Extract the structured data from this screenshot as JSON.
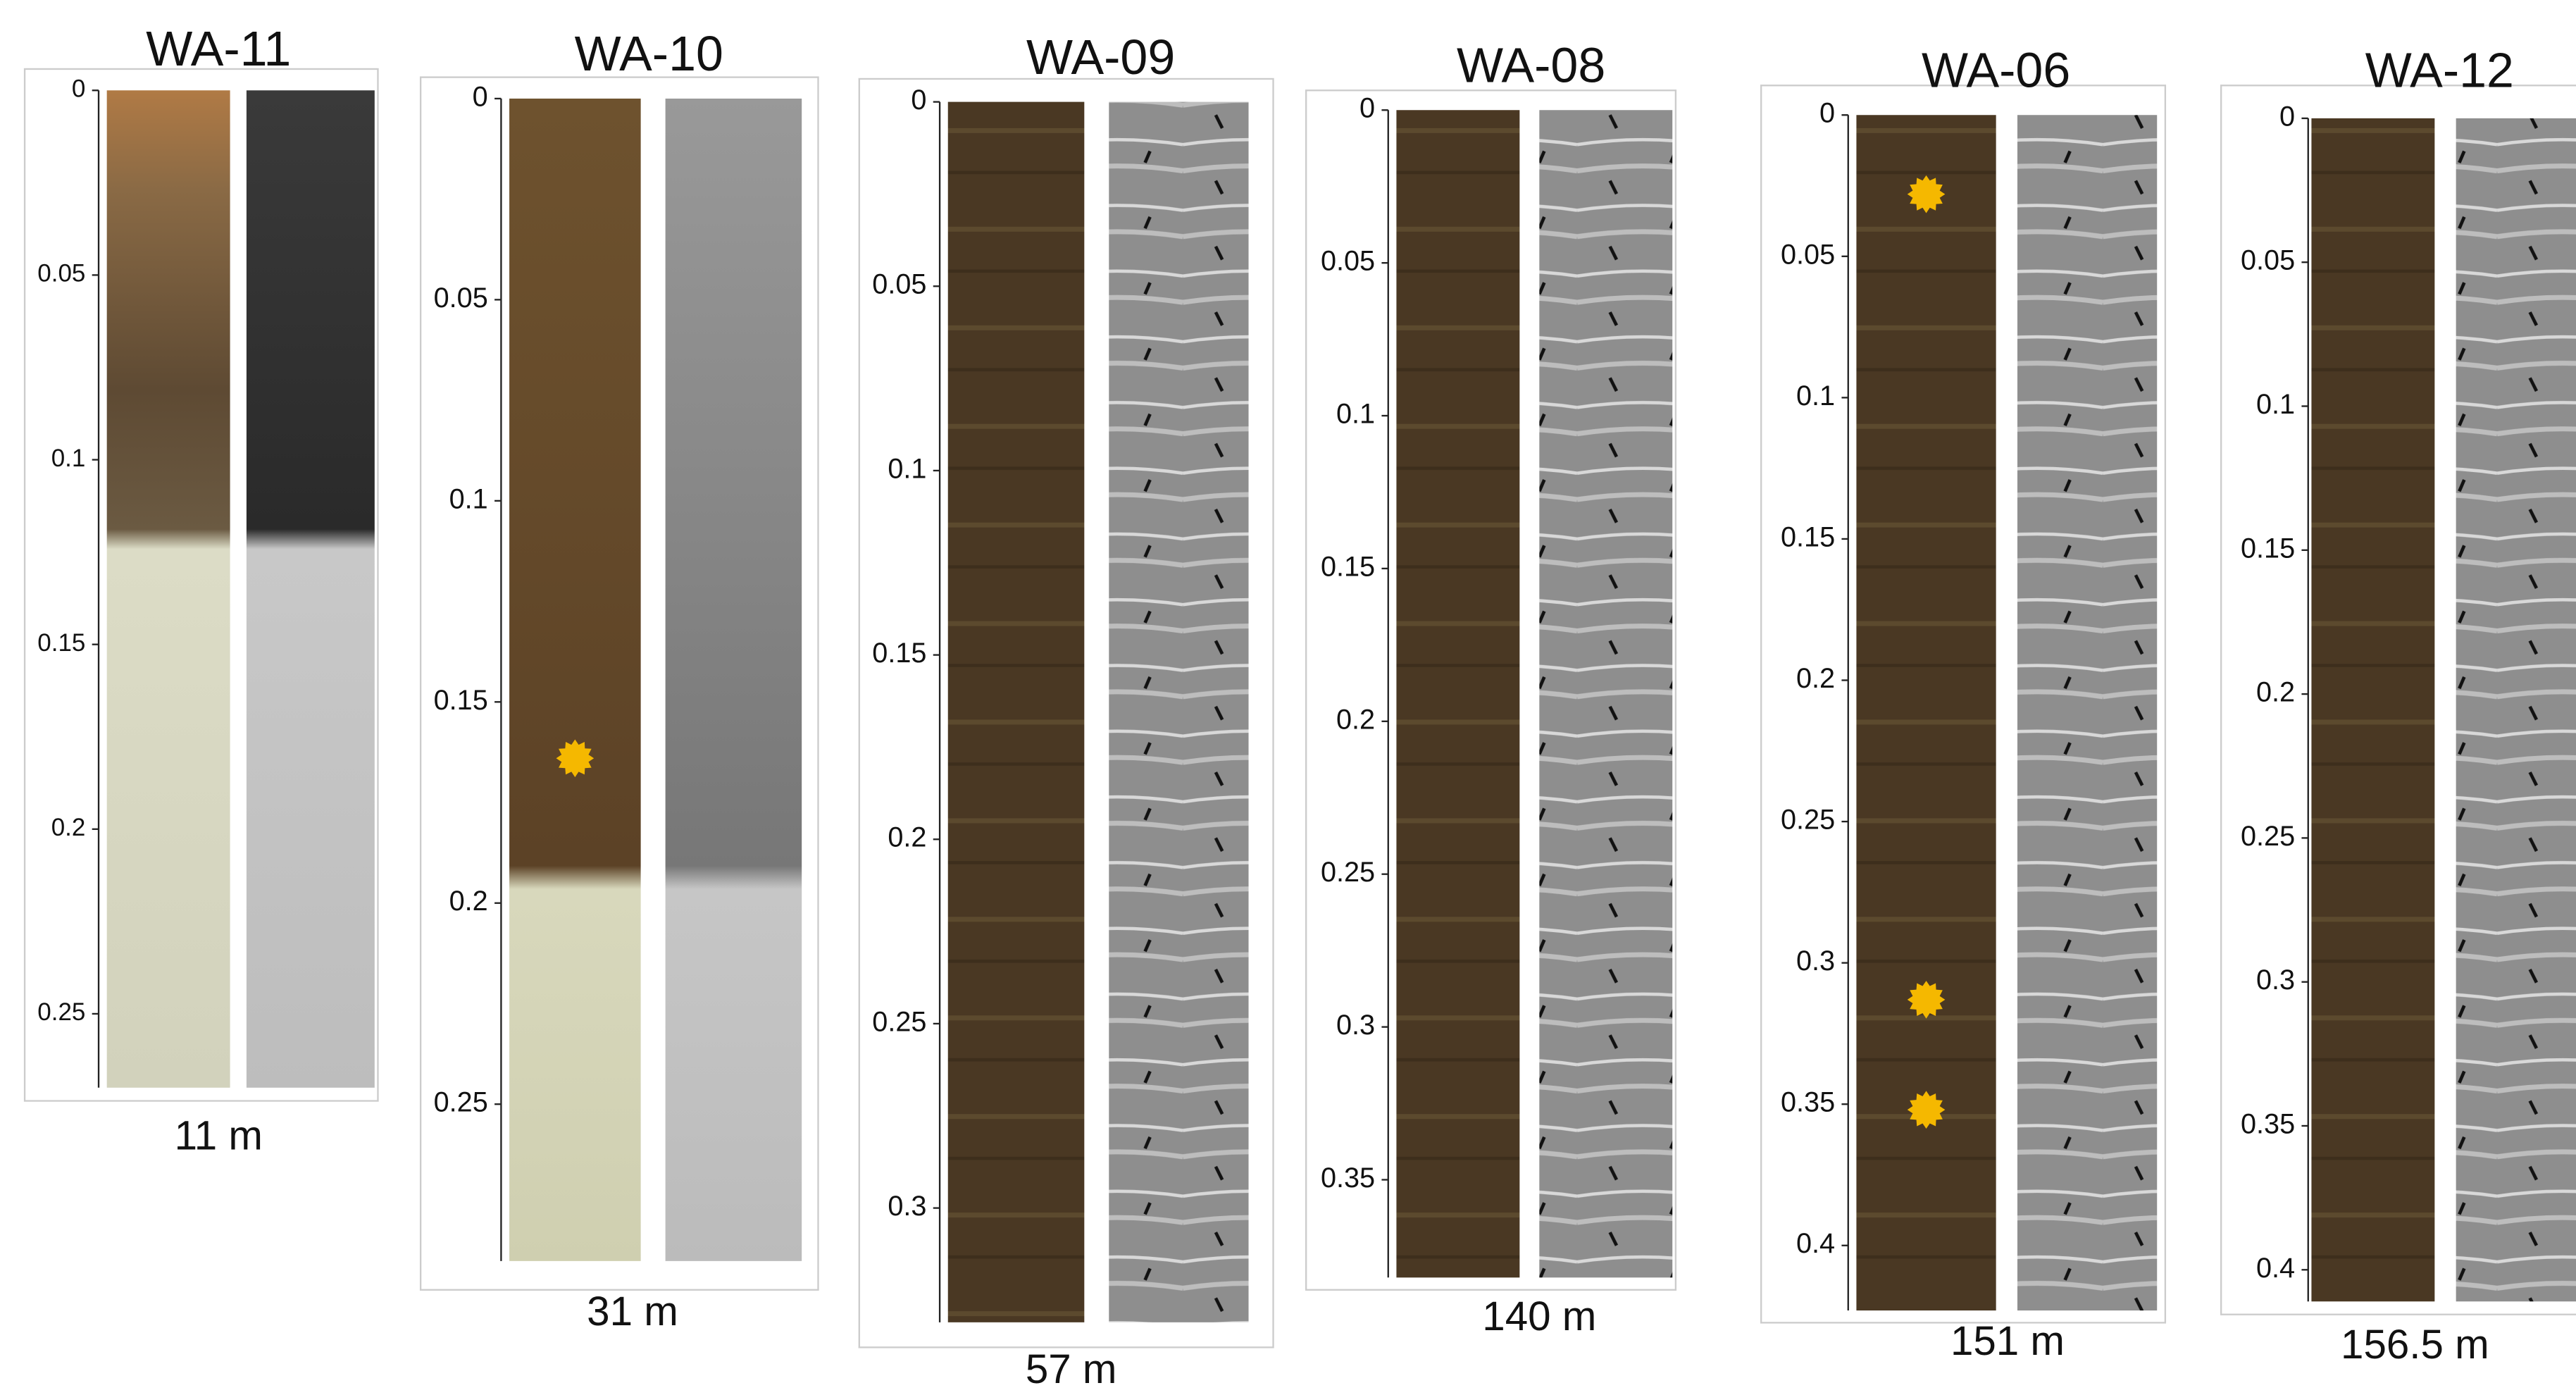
{
  "panels": [
    {
      "title": "WA-11",
      "caption": "11 m",
      "ylim": [
        0,
        0.27
      ],
      "yticks": [
        0,
        0.05,
        0.1,
        0.15,
        0.2,
        0.25
      ],
      "markers": []
    },
    {
      "title": "WA-10",
      "caption": "31 m",
      "ylim": [
        0,
        0.289
      ],
      "yticks": [
        0,
        0.05,
        0.1,
        0.15,
        0.2,
        0.25
      ],
      "markers": [
        0.164
      ]
    },
    {
      "title": "WA-09",
      "caption": "57 m",
      "ylim": [
        0,
        0.331
      ],
      "yticks": [
        0,
        0.05,
        0.1,
        0.15,
        0.2,
        0.25,
        0.3
      ],
      "markers": []
    },
    {
      "title": "WA-08",
      "caption": "140 m",
      "ylim": [
        0,
        0.382
      ],
      "yticks": [
        0,
        0.05,
        0.1,
        0.15,
        0.2,
        0.25,
        0.3,
        0.35
      ],
      "markers": []
    },
    {
      "title": "WA-06",
      "caption": "151 m",
      "ylim": [
        0,
        0.423
      ],
      "yticks": [
        0,
        0.05,
        0.1,
        0.15,
        0.2,
        0.25,
        0.3,
        0.35,
        0.4
      ],
      "markers": [
        0.028,
        0.313,
        0.352
      ]
    },
    {
      "title": "WA-12",
      "caption": "156.5 m",
      "ylim": [
        0,
        0.411
      ],
      "yticks": [
        0,
        0.05,
        0.1,
        0.15,
        0.2,
        0.25,
        0.3,
        0.35,
        0.4
      ],
      "markers": []
    }
  ]
}
